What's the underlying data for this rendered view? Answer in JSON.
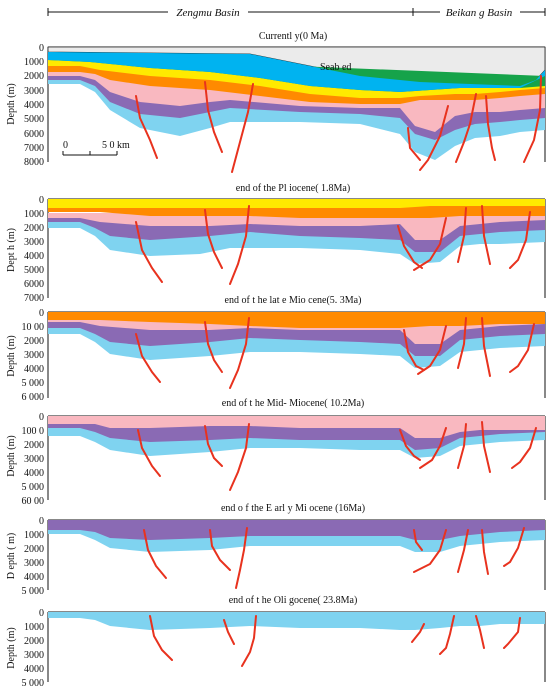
{
  "header": {
    "left_basin": "Zengmu Basin",
    "right_basin": "Beikan g Basin"
  },
  "colors": {
    "seawater": "#e9e9e9",
    "blue": "#00b3f0",
    "green": "#16a34a",
    "yellow": "#ffea00",
    "orange": "#ff8a00",
    "pink": "#f9b8c0",
    "purple": "#8a6ab4",
    "lightblue": "#7fd3f0",
    "fault": "#e8321e"
  },
  "panels": [
    {
      "title": "Currentl y(0 Ma)",
      "ylabel": "Depth (m)",
      "yticks": [
        "0",
        "1000",
        "2000",
        "3000",
        "4000",
        "5000",
        "6000",
        "7000",
        "8000"
      ],
      "annotation": "Seab ed",
      "scalebar": {
        "start": "0",
        "end": "5 0 km"
      }
    },
    {
      "title": "end of the Pl iocene( 1.8Ma)",
      "ylabel": "Dept h (m)",
      "yticks": [
        "0",
        "1000",
        "2000",
        "3000",
        "4000",
        "5000",
        "6000",
        "7000"
      ]
    },
    {
      "title": "end of t he lat e Mio cene(5. 3Ma)",
      "ylabel": "Depth (m)",
      "yticks": [
        "0",
        "10 00",
        "2000",
        "3000",
        "4000",
        "5 000",
        "6 000"
      ]
    },
    {
      "title": "end of t he Mid- Miocene( 10.2Ma)",
      "ylabel": "Depth (m)",
      "yticks": [
        "0",
        "100 0",
        "2000",
        "3000",
        "4000",
        "5 000",
        "60 00"
      ]
    },
    {
      "title": "end o f the E arl y Mi ocene (16Ma)",
      "ylabel": "D epth ( m)",
      "yticks": [
        "0",
        "1000",
        "2000",
        "3000",
        "4000",
        "5 000"
      ]
    },
    {
      "title": "end of t he Oli gocene( 23.8Ma)",
      "ylabel": "Depth (m)",
      "yticks": [
        "0",
        "1000",
        "2000",
        "3000",
        "4000",
        "5 000"
      ]
    }
  ]
}
